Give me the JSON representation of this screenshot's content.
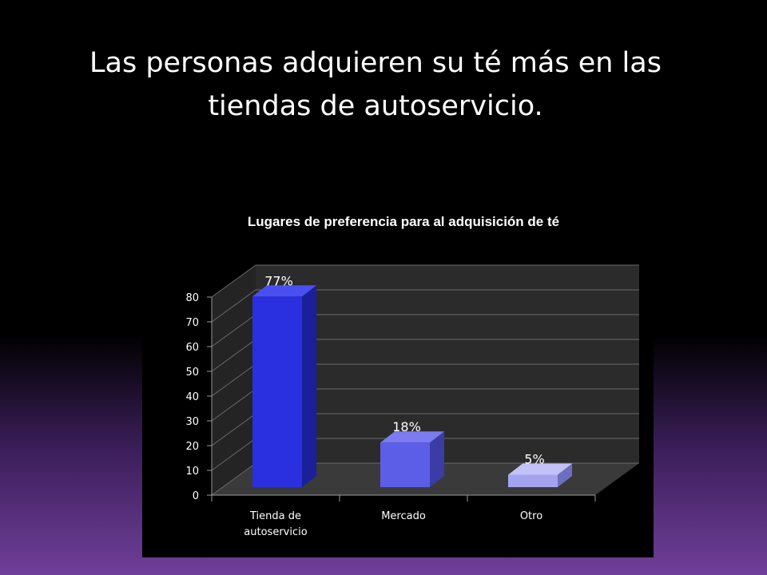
{
  "slide": {
    "title": "Las personas adquieren su té más en las tiendas de autoservicio."
  },
  "chart_data": {
    "type": "bar",
    "title": "Lugares de preferencia para al adquisición de té",
    "categories": [
      "Tienda de autoservicio",
      "Mercado",
      "Otro"
    ],
    "category_lines": [
      [
        "Tienda de",
        "autoservicio"
      ],
      [
        "Mercado"
      ],
      [
        "Otro"
      ]
    ],
    "values": [
      77,
      18,
      5
    ],
    "data_labels": [
      "77%",
      "18%",
      "5%"
    ],
    "ylim": [
      0,
      80
    ],
    "yticks": [
      0,
      10,
      20,
      30,
      40,
      50,
      60,
      70,
      80
    ],
    "grid": true,
    "legend": "none",
    "style": "3d-column",
    "colors": {
      "bar_fronts": [
        "#2a2fe0",
        "#5d5ee8",
        "#a3a3f0"
      ],
      "bar_sides": [
        "#1c1f9a",
        "#3b3ca6",
        "#6e6ec0"
      ],
      "bar_tops": [
        "#4a50f0",
        "#7a7cf0",
        "#c2c2f8"
      ],
      "chart_background": "#000000",
      "wall": "#2b2b2b",
      "floor": "#3a3a3a",
      "gridline": "#6a6a6a",
      "text": "#ffffff"
    }
  }
}
